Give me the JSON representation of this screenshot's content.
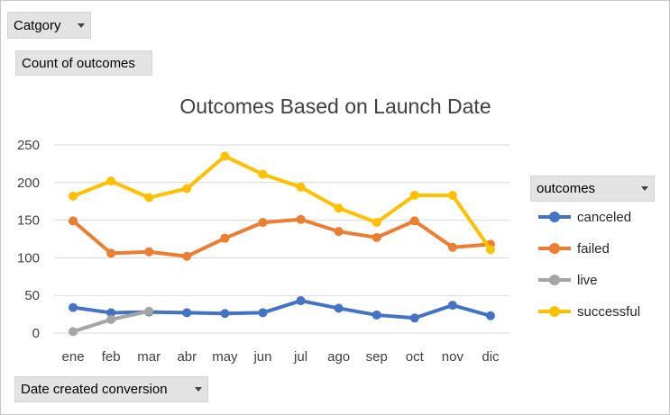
{
  "filters": {
    "category_label": "Catgory",
    "values_label": "Count of outcomes",
    "legend_field_label": "outcomes",
    "axis_field_label": "Date created conversion"
  },
  "colors": {
    "canceled": "#4472c4",
    "failed": "#ed7d31",
    "live": "#a5a5a5",
    "successful": "#ffc000",
    "gridline": "#d9d9d9"
  },
  "chart_data": {
    "type": "line",
    "title": "Outcomes Based on Launch Date",
    "categories": [
      "ene",
      "feb",
      "mar",
      "abr",
      "may",
      "jun",
      "jul",
      "ago",
      "sep",
      "oct",
      "nov",
      "dic"
    ],
    "ylim": [
      0,
      250
    ],
    "yticks": [
      0,
      50,
      100,
      150,
      200,
      250
    ],
    "grid": true,
    "legend_position": "right",
    "series": [
      {
        "name": "canceled",
        "values": [
          34,
          27,
          28,
          27,
          26,
          27,
          43,
          33,
          24,
          20,
          37,
          23
        ]
      },
      {
        "name": "failed",
        "values": [
          149,
          106,
          108,
          102,
          126,
          147,
          151,
          135,
          127,
          149,
          114,
          118
        ]
      },
      {
        "name": "live",
        "values": [
          2,
          18,
          29,
          null,
          null,
          null,
          null,
          null,
          null,
          null,
          null,
          null
        ]
      },
      {
        "name": "successful",
        "values": [
          182,
          202,
          180,
          192,
          235,
          211,
          194,
          166,
          147,
          183,
          183,
          111
        ]
      }
    ]
  }
}
